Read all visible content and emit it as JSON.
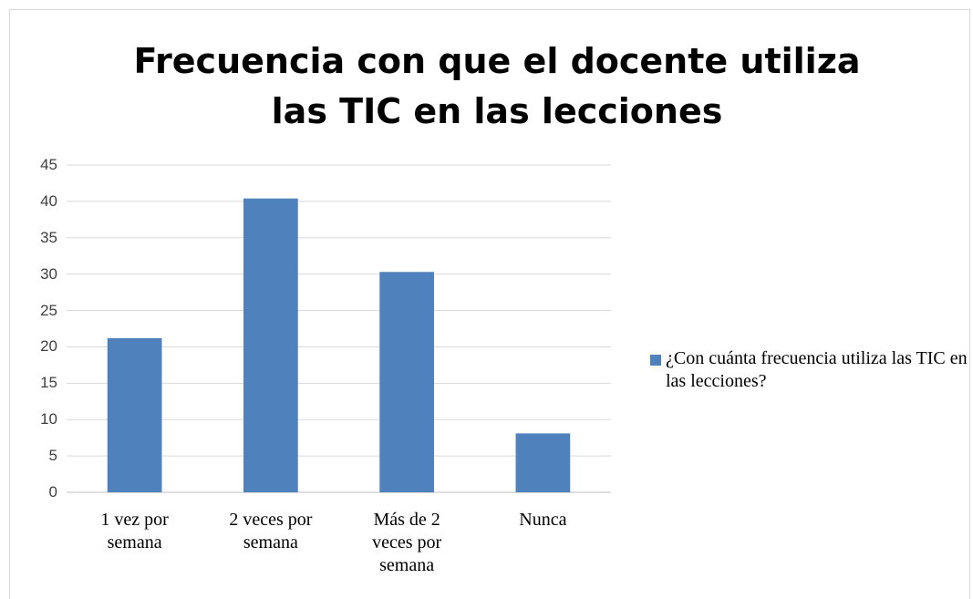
{
  "chart_data": {
    "type": "bar",
    "title": "Frecuencia con que el docente utiliza las TIC en las lecciones",
    "categories": [
      "1 vez por semana",
      "2 veces por semana",
      "Más de 2 veces por semana",
      "Nunca"
    ],
    "series": [
      {
        "name": "¿Con cuánta frecuencia utiliza las TIC en las lecciones?",
        "color": "#4f81bd",
        "values": [
          21.2,
          40.4,
          30.3,
          8.1
        ]
      }
    ],
    "ylim": [
      0,
      45
    ],
    "yticks": [
      0,
      5,
      10,
      15,
      20,
      25,
      30,
      35,
      40,
      45
    ],
    "grid": true,
    "legend": "right"
  }
}
